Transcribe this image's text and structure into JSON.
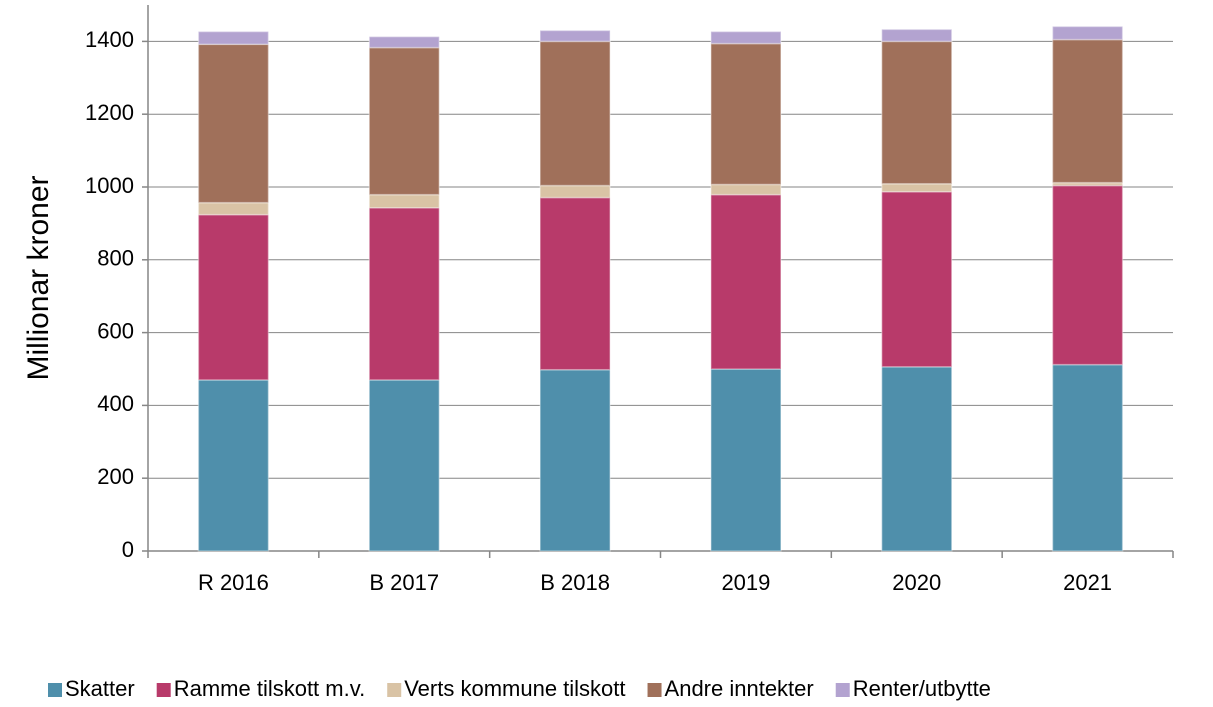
{
  "chart_data": {
    "type": "stacked_bar",
    "y_label": "Millionar kroner",
    "categories": [
      "R 2016",
      "B 2017",
      "B 2018",
      "2019",
      "2020",
      "2021"
    ],
    "series": [
      {
        "name": "Skatter",
        "color": "#4f8fab",
        "values": [
          470,
          470,
          498,
          500,
          506,
          512
        ]
      },
      {
        "name": "Ramme tilskott m.v.",
        "color": "#b83a6a",
        "values": [
          454,
          473,
          473,
          479,
          481,
          492
        ]
      },
      {
        "name": "Verts kommune tilskott",
        "color": "#d9c3a5",
        "values": [
          33,
          36,
          33,
          28,
          22,
          8
        ]
      },
      {
        "name": "Andre inntekter",
        "color": "#a0705a",
        "values": [
          435,
          404,
          396,
          387,
          391,
          393
        ]
      },
      {
        "name": "Renter/utbytte",
        "color": "#b3a3d0",
        "values": [
          35,
          30,
          30,
          33,
          33,
          36
        ]
      }
    ],
    "ylim": [
      0,
      1500
    ],
    "yticks": [
      0,
      200,
      400,
      600,
      800,
      1000,
      1200,
      1400
    ],
    "grid": true
  }
}
